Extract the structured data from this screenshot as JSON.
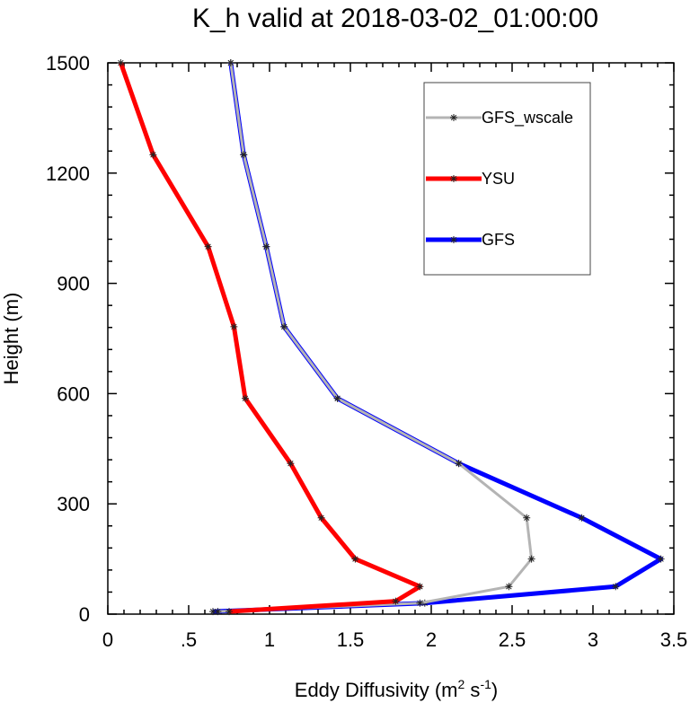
{
  "chart_data": {
    "type": "line",
    "title": "K_h valid at 2018-03-02_01:00:00",
    "xlabel": {
      "base": "Eddy Diffusivity (m",
      "sup1": "2",
      "mid": " s",
      "sup2": "-1",
      "end": ")"
    },
    "ylabel": "Height (m)",
    "xlim": [
      0,
      3.5
    ],
    "ylim": [
      0,
      1500
    ],
    "xticks": [
      0,
      0.5,
      1,
      1.5,
      2,
      2.5,
      3,
      3.5
    ],
    "xtick_labels": [
      "0",
      ".5",
      "1",
      "1.5",
      "2",
      "2.5",
      "3",
      "3.5"
    ],
    "yticks": [
      0,
      300,
      600,
      900,
      1200,
      1500
    ],
    "ytick_labels": [
      "0",
      "300",
      "600",
      "900",
      "1200",
      "1500"
    ],
    "legend_position": "top-right",
    "series": [
      {
        "name": "GFS",
        "color": "#0000ff",
        "x": [
          0.65,
          1.96,
          3.14,
          3.42,
          2.93,
          2.17,
          1.42,
          1.09,
          0.98,
          0.84,
          0.76
        ],
        "y": [
          7,
          30,
          75,
          150,
          262,
          410,
          587,
          782,
          1000,
          1250,
          1500
        ]
      },
      {
        "name": "GFS_wscale",
        "color": "#b4b4b4",
        "x": [
          0.68,
          1.93,
          2.48,
          2.62,
          2.59,
          2.17,
          1.42,
          1.09,
          0.98,
          0.84,
          0.76
        ],
        "y": [
          7,
          30,
          75,
          150,
          262,
          410,
          587,
          782,
          1000,
          1250,
          1500
        ]
      },
      {
        "name": "YSU",
        "color": "#ff0000",
        "x": [
          0.75,
          1.78,
          1.93,
          1.53,
          1.32,
          1.13,
          0.85,
          0.78,
          0.62,
          0.28,
          0.08
        ],
        "y": [
          7,
          35,
          75,
          150,
          262,
          410,
          587,
          782,
          1000,
          1250,
          1500
        ]
      }
    ],
    "legend_order": [
      "GFS_wscale",
      "YSU",
      "GFS"
    ]
  }
}
